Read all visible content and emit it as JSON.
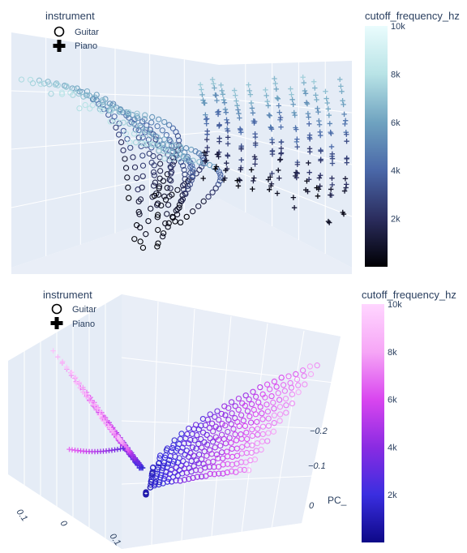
{
  "chart_data": [
    {
      "type": "scatter",
      "title": "",
      "legend": {
        "title": "instrument",
        "placement": "top-left",
        "items": [
          {
            "name": "Guitar",
            "symbol": "circle-open"
          },
          {
            "name": "Piano",
            "symbol": "cross"
          }
        ]
      },
      "colorbar": {
        "title": "cutoff_frequency_hz",
        "range": [
          0,
          10000
        ],
        "tick_labels": [
          "2k",
          "4k",
          "6k",
          "8k",
          "10k"
        ],
        "tick_values": [
          2000,
          4000,
          6000,
          8000,
          10000
        ],
        "colorscale": [
          "#000004",
          "#2b2d5e",
          "#4a67a8",
          "#6fa3c0",
          "#b8e3e6",
          "#eafcfd"
        ]
      },
      "series": [
        {
          "name": "Guitar",
          "symbol": "circle-open"
        },
        {
          "name": "Piano",
          "symbol": "cross"
        }
      ]
    },
    {
      "type": "scatter",
      "title": "",
      "legend": {
        "title": "instrument",
        "placement": "top-left",
        "items": [
          {
            "name": "Guitar",
            "symbol": "circle-open"
          },
          {
            "name": "Piano",
            "symbol": "cross"
          }
        ]
      },
      "colorbar": {
        "title": "cutoff_frequency_hz",
        "range": [
          0,
          10000
        ],
        "tick_labels": [
          "2k",
          "4k",
          "6k",
          "8k",
          "10k"
        ],
        "tick_values": [
          2000,
          4000,
          6000,
          8000,
          10000
        ],
        "colorscale": [
          "#0d0887",
          "#3a2ee0",
          "#8a2be2",
          "#d946ef",
          "#f6a6f6",
          "#ffd6ff"
        ]
      },
      "axes": {
        "z_title": "PC_",
        "z_tick_labels": [
          "−0.2",
          "−0.1",
          "0"
        ],
        "x_tick_labels": [
          "0.1",
          "0",
          "0.1"
        ]
      },
      "series": [
        {
          "name": "Guitar",
          "symbol": "circle-open"
        },
        {
          "name": "Piano",
          "symbol": "cross"
        }
      ]
    }
  ]
}
